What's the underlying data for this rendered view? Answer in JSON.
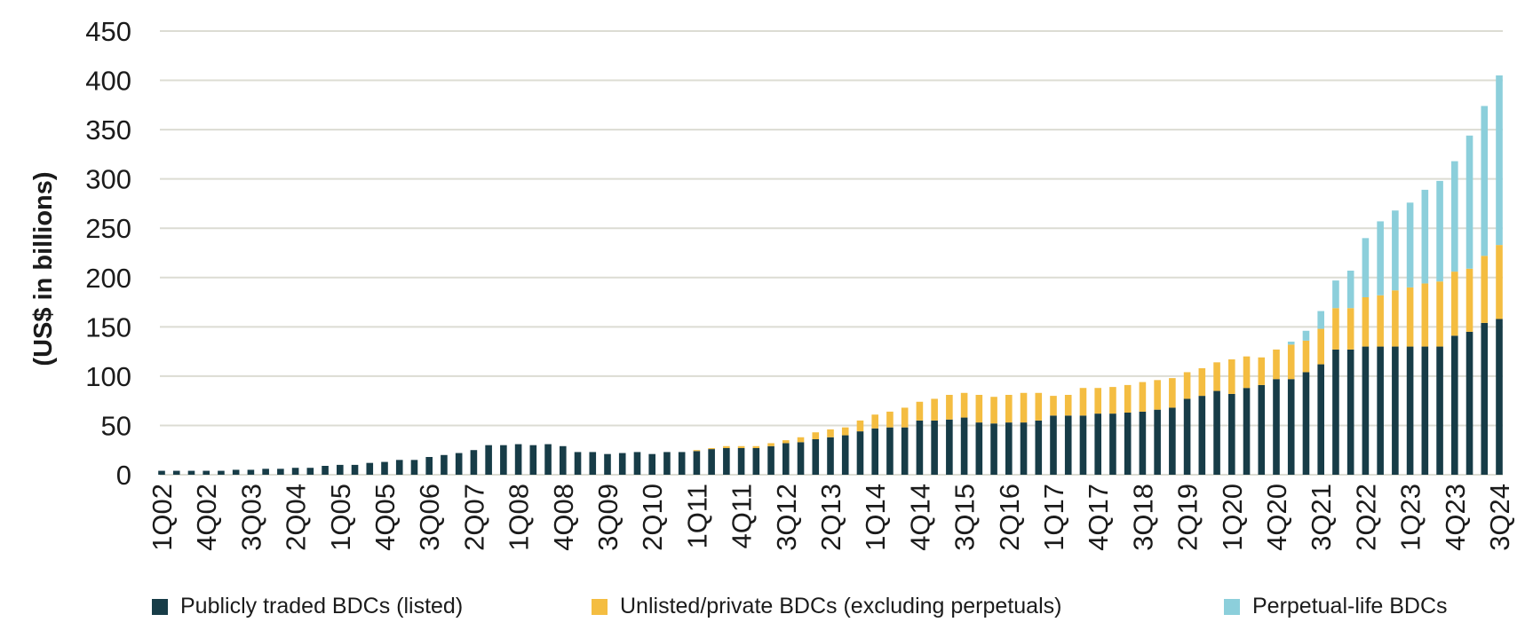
{
  "chart_data": {
    "type": "bar",
    "stacked": true,
    "title": "",
    "xlabel": "",
    "ylabel": "(US$ in billions)",
    "ylim": [
      0,
      450
    ],
    "yticks": [
      0,
      50,
      100,
      150,
      200,
      250,
      300,
      350,
      400,
      450
    ],
    "grid": true,
    "legend_position": "bottom",
    "colors": {
      "listed": "#173c47",
      "unlisted": "#f4bd41",
      "perpetual": "#8ccfdb",
      "grid": "#dcdcd3",
      "text": "#1b1b1b"
    },
    "categories": [
      "1Q02",
      "2Q02",
      "3Q02",
      "4Q02",
      "1Q03",
      "2Q03",
      "3Q03",
      "4Q03",
      "1Q04",
      "2Q04",
      "3Q04",
      "4Q04",
      "1Q05",
      "2Q05",
      "3Q05",
      "4Q05",
      "1Q06",
      "2Q06",
      "3Q06",
      "4Q06",
      "1Q07",
      "2Q07",
      "3Q07",
      "4Q07",
      "1Q08",
      "2Q08",
      "3Q08",
      "4Q08",
      "1Q09",
      "2Q09",
      "3Q09",
      "4Q09",
      "1Q10",
      "2Q10",
      "3Q10",
      "4Q10",
      "1Q11",
      "2Q11",
      "3Q11",
      "4Q11",
      "1Q12",
      "2Q12",
      "3Q12",
      "4Q12",
      "1Q13",
      "2Q13",
      "3Q13",
      "4Q13",
      "1Q14",
      "2Q14",
      "3Q14",
      "4Q14",
      "1Q15",
      "2Q15",
      "3Q15",
      "4Q15",
      "1Q16",
      "2Q16",
      "3Q16",
      "4Q16",
      "1Q17",
      "2Q17",
      "3Q17",
      "4Q17",
      "1Q18",
      "2Q18",
      "3Q18",
      "4Q18",
      "1Q19",
      "2Q19",
      "3Q19",
      "4Q19",
      "1Q20",
      "2Q20",
      "3Q20",
      "4Q20",
      "1Q21",
      "2Q21",
      "3Q21",
      "4Q21",
      "1Q22",
      "2Q22",
      "3Q22",
      "4Q22",
      "1Q23",
      "2Q23",
      "3Q23",
      "4Q23",
      "1Q24",
      "2Q24",
      "3Q24"
    ],
    "x_tick_labels": [
      "1Q02",
      "4Q02",
      "3Q03",
      "2Q04",
      "1Q05",
      "4Q05",
      "3Q06",
      "2Q07",
      "1Q08",
      "4Q08",
      "3Q09",
      "2Q10",
      "1Q11",
      "4Q11",
      "3Q12",
      "2Q13",
      "1Q14",
      "4Q14",
      "3Q15",
      "2Q16",
      "1Q17",
      "4Q17",
      "3Q18",
      "2Q19",
      "1Q20",
      "4Q20",
      "3Q21",
      "2Q22",
      "1Q23",
      "4Q23",
      "3Q24"
    ],
    "series": [
      {
        "name": "Publicly traded BDCs (listed)",
        "color": "#173c47",
        "values": [
          4,
          4,
          4,
          4,
          4,
          5,
          5,
          6,
          6,
          7,
          7,
          9,
          10,
          10,
          12,
          13,
          15,
          15,
          18,
          20,
          22,
          25,
          30,
          30,
          31,
          30,
          31,
          29,
          23,
          23,
          21,
          22,
          23,
          21,
          23,
          23,
          24,
          26,
          27,
          27,
          27,
          29,
          32,
          33,
          36,
          38,
          40,
          44,
          47,
          48,
          48,
          55,
          55,
          56,
          58,
          53,
          52,
          53,
          53,
          55,
          60,
          60,
          60,
          62,
          62,
          63,
          64,
          66,
          68,
          77,
          80,
          85,
          82,
          88,
          91,
          97,
          97,
          104,
          112,
          127,
          127,
          130,
          130,
          130,
          130,
          130,
          130,
          141,
          145,
          154,
          158
        ]
      },
      {
        "name": "Unlisted/private BDCs (excluding perpetuals)",
        "color": "#f4bd41",
        "values": [
          0,
          0,
          0,
          0,
          0,
          0,
          0,
          0,
          0,
          0,
          0,
          0,
          0,
          0,
          0,
          0,
          0,
          0,
          0,
          0,
          0,
          0,
          0,
          0,
          0,
          0,
          0,
          0,
          0,
          0,
          0,
          0,
          0,
          0,
          0,
          0,
          1,
          1,
          2,
          2,
          2,
          3,
          3,
          5,
          7,
          8,
          8,
          11,
          14,
          16,
          20,
          19,
          22,
          25,
          25,
          28,
          27,
          28,
          30,
          28,
          20,
          21,
          28,
          26,
          27,
          28,
          30,
          30,
          30,
          27,
          28,
          29,
          35,
          32,
          28,
          30,
          35,
          32,
          36,
          42,
          42,
          50,
          52,
          57,
          60,
          64,
          66,
          65,
          64,
          68,
          75
        ]
      },
      {
        "name": "Perpetual-life BDCs",
        "color": "#8ccfdb",
        "values": [
          0,
          0,
          0,
          0,
          0,
          0,
          0,
          0,
          0,
          0,
          0,
          0,
          0,
          0,
          0,
          0,
          0,
          0,
          0,
          0,
          0,
          0,
          0,
          0,
          0,
          0,
          0,
          0,
          0,
          0,
          0,
          0,
          0,
          0,
          0,
          0,
          0,
          0,
          0,
          0,
          0,
          0,
          0,
          0,
          0,
          0,
          0,
          0,
          0,
          0,
          0,
          0,
          0,
          0,
          0,
          0,
          0,
          0,
          0,
          0,
          0,
          0,
          0,
          0,
          0,
          0,
          0,
          0,
          0,
          0,
          0,
          0,
          0,
          0,
          0,
          0,
          3,
          10,
          18,
          28,
          38,
          60,
          75,
          81,
          86,
          95,
          102,
          112,
          135,
          152,
          172
        ]
      }
    ]
  },
  "legend": {
    "items": [
      {
        "label": "Publicly traded BDCs (listed)",
        "color": "#173c47"
      },
      {
        "label": "Unlisted/private BDCs (excluding perpetuals)",
        "color": "#f4bd41"
      },
      {
        "label": "Perpetual-life BDCs",
        "color": "#8ccfdb"
      }
    ]
  }
}
